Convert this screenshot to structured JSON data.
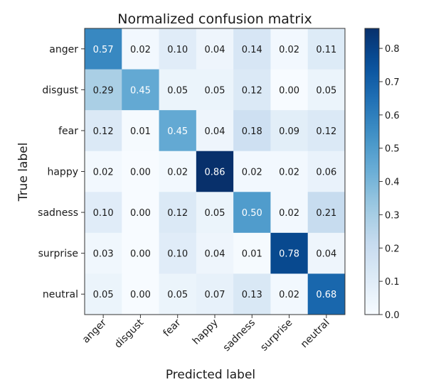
{
  "chart_data": {
    "type": "heatmap",
    "title": "Normalized confusion matrix",
    "xlabel": "Predicted label",
    "ylabel": "True label",
    "x_categories": [
      "anger",
      "disgust",
      "fear",
      "happy",
      "sadness",
      "surprise",
      "neutral"
    ],
    "y_categories": [
      "anger",
      "disgust",
      "fear",
      "happy",
      "sadness",
      "surprise",
      "neutral"
    ],
    "values": [
      [
        0.57,
        0.02,
        0.1,
        0.04,
        0.14,
        0.02,
        0.11
      ],
      [
        0.29,
        0.45,
        0.05,
        0.05,
        0.12,
        0.0,
        0.05
      ],
      [
        0.12,
        0.01,
        0.45,
        0.04,
        0.18,
        0.09,
        0.12
      ],
      [
        0.02,
        0.0,
        0.02,
        0.86,
        0.02,
        0.02,
        0.06
      ],
      [
        0.1,
        0.0,
        0.12,
        0.05,
        0.5,
        0.02,
        0.21
      ],
      [
        0.03,
        0.0,
        0.1,
        0.04,
        0.01,
        0.78,
        0.04
      ],
      [
        0.05,
        0.0,
        0.05,
        0.07,
        0.13,
        0.02,
        0.68
      ]
    ],
    "value_labels": [
      [
        "0.57",
        "0.02",
        "0.10",
        "0.04",
        "0.14",
        "0.02",
        "0.11"
      ],
      [
        "0.29",
        "0.45",
        "0.05",
        "0.05",
        "0.12",
        "0.00",
        "0.05"
      ],
      [
        "0.12",
        "0.01",
        "0.45",
        "0.04",
        "0.18",
        "0.09",
        "0.12"
      ],
      [
        "0.02",
        "0.00",
        "0.02",
        "0.86",
        "0.02",
        "0.02",
        "0.06"
      ],
      [
        "0.10",
        "0.00",
        "0.12",
        "0.05",
        "0.50",
        "0.02",
        "0.21"
      ],
      [
        "0.03",
        "0.00",
        "0.10",
        "0.04",
        "0.01",
        "0.78",
        "0.04"
      ],
      [
        "0.05",
        "0.00",
        "0.05",
        "0.07",
        "0.13",
        "0.02",
        "0.68"
      ]
    ],
    "colormap": "Blues",
    "colorbar": {
      "range": [
        0.0,
        0.86
      ],
      "ticks": [
        0.0,
        0.1,
        0.2,
        0.3,
        0.4,
        0.5,
        0.6,
        0.7,
        0.8
      ],
      "tick_labels": [
        "0.0",
        "0.1",
        "0.2",
        "0.3",
        "0.4",
        "0.5",
        "0.6",
        "0.7",
        "0.8"
      ],
      "placement": "right"
    },
    "colors": {
      "low": "#f7fbff",
      "high": "#08306b",
      "text_dark": "#1a1a1a",
      "text_light": "#ffffff"
    }
  }
}
